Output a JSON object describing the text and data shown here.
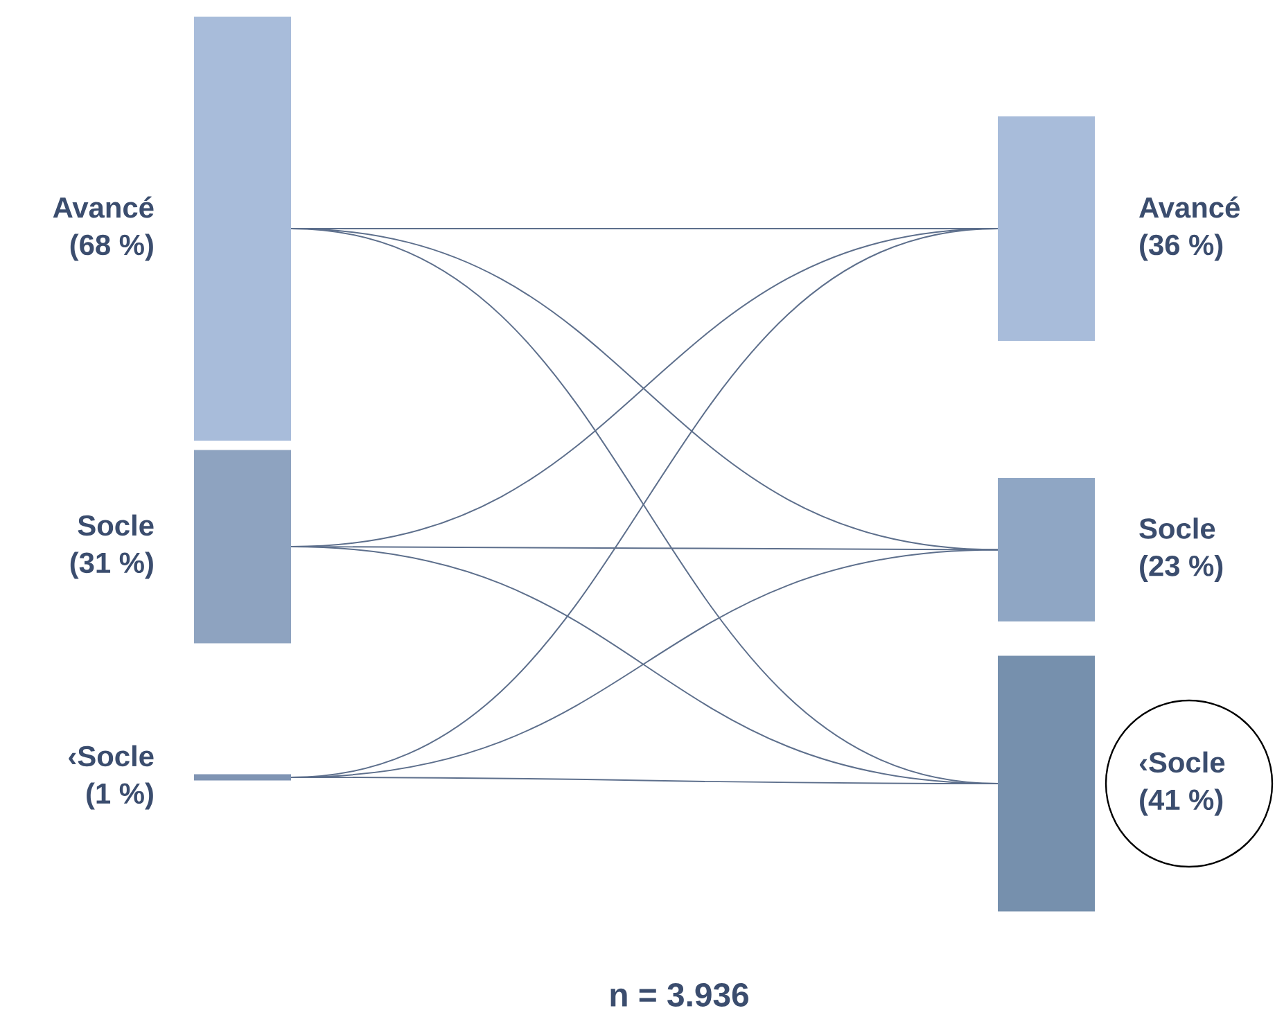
{
  "chart_data": {
    "type": "other",
    "categories": [
      "Avancé",
      "Socle",
      "‹Socle"
    ],
    "series": [
      {
        "values": [
          68,
          31,
          1
        ],
        "colors": [
          "#a8bcda",
          "#8ea3c0",
          "#7f94b3"
        ],
        "value_labels": [
          "(68 %)",
          "(31 %)",
          "(1 %)"
        ]
      },
      {
        "values": [
          36,
          23,
          41
        ],
        "colors": [
          "#a8bcda",
          "#8fa6c4",
          "#7690ad"
        ],
        "value_labels": [
          "(36 %)",
          "(23 %)",
          "(41 %)"
        ]
      }
    ],
    "annotations": [
      "n = 3.936"
    ]
  }
}
